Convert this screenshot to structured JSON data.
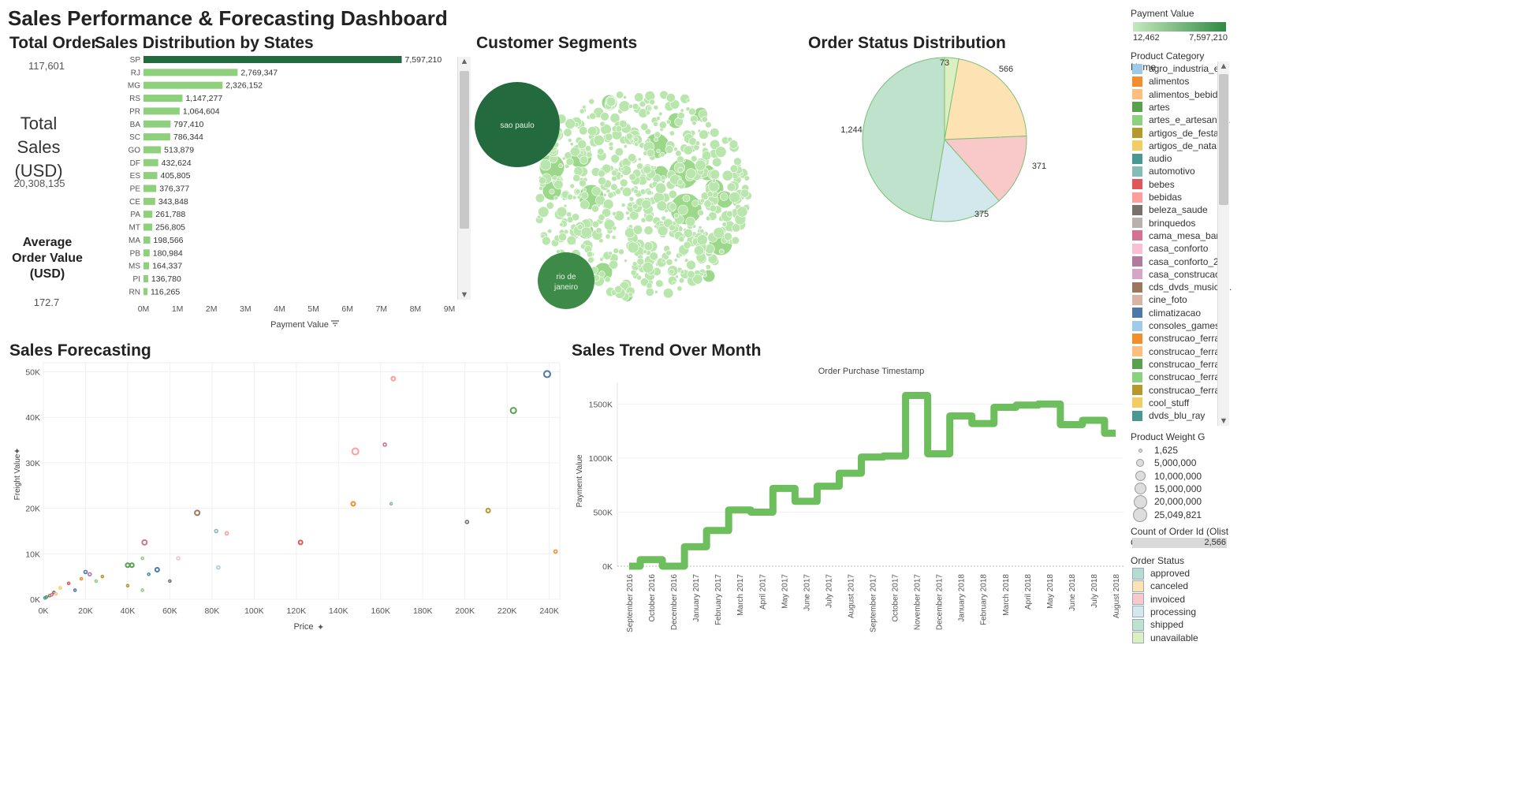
{
  "dashboard_title": "Sales Performance & Forecasting Dashboard",
  "kpis": {
    "total_order_title": "Total Order",
    "total_order_value": "117,601",
    "total_sales_title": "Total Sales (USD)",
    "total_sales_value": "20,308,135",
    "aov_title": "Average Order Value (USD)",
    "aov_value": "172.7"
  },
  "states_chart": {
    "title": "Sales Distribution by States",
    "xlabel": "Payment Value",
    "ticks": [
      "0M",
      "1M",
      "2M",
      "3M",
      "4M",
      "5M",
      "6M",
      "7M",
      "8M",
      "9M"
    ]
  },
  "segments": {
    "title": "Customer Segments",
    "big_bubbles": [
      "sao paulo",
      "rio de janeiro"
    ]
  },
  "order_status_chart": {
    "title": "Order Status Distribution"
  },
  "forecast": {
    "title": "Sales Forecasting",
    "xlabel": "Price",
    "ylabel": "Freight Value",
    "x_ticks": [
      "0K",
      "20K",
      "40K",
      "60K",
      "80K",
      "100K",
      "120K",
      "140K",
      "160K",
      "180K",
      "200K",
      "220K",
      "240K"
    ],
    "y_ticks": [
      "0K",
      "10K",
      "20K",
      "30K",
      "40K",
      "50K"
    ]
  },
  "trend": {
    "title": "Sales Trend Over Month",
    "header": "Order Purchase Timestamp",
    "ylabel": "Payment Value",
    "y_ticks": [
      "0K",
      "500K",
      "1000K",
      "1500K"
    ],
    "months": [
      "September 2016",
      "October 2016",
      "December 2016",
      "January 2017",
      "February 2017",
      "March 2017",
      "April 2017",
      "May 2017",
      "June 2017",
      "July 2017",
      "August 2017",
      "September 2017",
      "October 2017",
      "November 2017",
      "December 2017",
      "January 2018",
      "February 2018",
      "March 2018",
      "April 2018",
      "May 2018",
      "June 2018",
      "July 2018",
      "August 2018"
    ]
  },
  "legend": {
    "payment_title": "Payment Value",
    "payment_min": "12,462",
    "payment_max": "7,597,210",
    "category_title": "Product Category Name",
    "categories": [
      {
        "name": "agro_industria_e...",
        "color": "#9ecae9"
      },
      {
        "name": "alimentos",
        "color": "#f28e2b"
      },
      {
        "name": "alimentos_bebidas",
        "color": "#ffbe7d"
      },
      {
        "name": "artes",
        "color": "#59a14f"
      },
      {
        "name": "artes_e_artesana...",
        "color": "#8cd17d"
      },
      {
        "name": "artigos_de_festas",
        "color": "#b6992d"
      },
      {
        "name": "artigos_de_natal",
        "color": "#f1ce63"
      },
      {
        "name": "audio",
        "color": "#499894"
      },
      {
        "name": "automotivo",
        "color": "#86bcb6"
      },
      {
        "name": "bebes",
        "color": "#e15759"
      },
      {
        "name": "bebidas",
        "color": "#ff9d9a"
      },
      {
        "name": "beleza_saude",
        "color": "#79706e"
      },
      {
        "name": "brinquedos",
        "color": "#bab0ac"
      },
      {
        "name": "cama_mesa_ban...",
        "color": "#d37295"
      },
      {
        "name": "casa_conforto",
        "color": "#fabfd2"
      },
      {
        "name": "casa_conforto_2",
        "color": "#b07aa1"
      },
      {
        "name": "casa_construcao",
        "color": "#d4a6c8"
      },
      {
        "name": "cds_dvds_musica...",
        "color": "#9d7660"
      },
      {
        "name": "cine_foto",
        "color": "#d7b5a6"
      },
      {
        "name": "climatizacao",
        "color": "#4e79a7"
      },
      {
        "name": "consoles_games",
        "color": "#a0cbe8"
      },
      {
        "name": "construcao_ferra...",
        "color": "#f28e2b"
      },
      {
        "name": "construcao_ferra...",
        "color": "#ffbe7d"
      },
      {
        "name": "construcao_ferra...",
        "color": "#59a14f"
      },
      {
        "name": "construcao_ferra...",
        "color": "#8cd17d"
      },
      {
        "name": "construcao_ferra...",
        "color": "#b6992d"
      },
      {
        "name": "cool_stuff",
        "color": "#f1ce63"
      },
      {
        "name": "dvds_blu_ray",
        "color": "#499894"
      }
    ],
    "weight_title": "Product Weight G",
    "weights": [
      "1,625",
      "5,000,000",
      "10,000,000",
      "15,000,000",
      "20,000,000",
      "25,049,821"
    ],
    "count_title": "Count of Order Id (Olist O...",
    "count_value": "2,566",
    "status_title": "Order Status",
    "statuses": [
      {
        "name": "approved",
        "color": "#b5dcce"
      },
      {
        "name": "canceled",
        "color": "#fde3b3"
      },
      {
        "name": "invoiced",
        "color": "#f9c8c8"
      },
      {
        "name": "processing",
        "color": "#d3e8ec"
      },
      {
        "name": "shipped",
        "color": "#bfe2cc"
      },
      {
        "name": "unavailable",
        "color": "#dcefc0"
      }
    ]
  },
  "chart_data": [
    {
      "type": "bar",
      "title": "Sales Distribution by States",
      "xlabel": "Payment Value",
      "xlim": [
        0,
        9000000
      ],
      "categories": [
        "SP",
        "RJ",
        "MG",
        "RS",
        "PR",
        "BA",
        "SC",
        "GO",
        "DF",
        "ES",
        "PE",
        "CE",
        "PA",
        "MT",
        "MA",
        "PB",
        "MS",
        "PI",
        "RN"
      ],
      "values": [
        7597210,
        2769347,
        2326152,
        1147277,
        1064604,
        797410,
        786344,
        513879,
        432624,
        405805,
        376377,
        343848,
        261788,
        256805,
        198566,
        180984,
        164337,
        136780,
        116265
      ],
      "labels": [
        "7,597,210",
        "2,769,347",
        "2,326,152",
        "1,147,277",
        "1,064,604",
        "797,410",
        "786,344",
        "513,879",
        "432,624",
        "405,805",
        "376,377",
        "343,848",
        "261,788",
        "256,805",
        "198,566",
        "180,984",
        "164,337",
        "136,780",
        "116,265"
      ]
    },
    {
      "type": "pie",
      "title": "Order Status Distribution",
      "slices": [
        {
          "label": "73",
          "value": 73,
          "color": "#dcefc0"
        },
        {
          "label": "566",
          "value": 566,
          "color": "#fde3b3"
        },
        {
          "label": "371",
          "value": 371,
          "color": "#f9c8c8"
        },
        {
          "label": "375",
          "value": 375,
          "color": "#d3e8ec"
        },
        {
          "label": "1,244",
          "value": 1244,
          "color": "#bfe2cc"
        }
      ]
    },
    {
      "type": "scatter",
      "title": "Sales Forecasting",
      "xlabel": "Price",
      "ylabel": "Freight Value",
      "xlim": [
        0,
        245000
      ],
      "ylim": [
        0,
        52000
      ],
      "points": [
        {
          "x": 239000,
          "y": 49500,
          "r": 4,
          "color": "#4e79a7"
        },
        {
          "x": 223000,
          "y": 41500,
          "r": 3.5,
          "color": "#59a14f"
        },
        {
          "x": 166000,
          "y": 48500,
          "r": 2.5,
          "color": "#ff9d9a"
        },
        {
          "x": 148000,
          "y": 32500,
          "r": 4,
          "color": "#ff9d9a"
        },
        {
          "x": 162000,
          "y": 34000,
          "r": 2,
          "color": "#d37295"
        },
        {
          "x": 147000,
          "y": 21000,
          "r": 2.5,
          "color": "#f28e2b"
        },
        {
          "x": 165000,
          "y": 21000,
          "r": 1.5,
          "color": "#86bcb6"
        },
        {
          "x": 211000,
          "y": 19500,
          "r": 2.5,
          "color": "#b6992d"
        },
        {
          "x": 201000,
          "y": 17000,
          "r": 2,
          "color": "#79706e"
        },
        {
          "x": 243000,
          "y": 10500,
          "r": 2,
          "color": "#f28e2b"
        },
        {
          "x": 73000,
          "y": 19000,
          "r": 3,
          "color": "#9d7660"
        },
        {
          "x": 82000,
          "y": 15000,
          "r": 2,
          "color": "#86bcb6"
        },
        {
          "x": 87000,
          "y": 14500,
          "r": 2,
          "color": "#ff9d9a"
        },
        {
          "x": 122000,
          "y": 12500,
          "r": 2.5,
          "color": "#e15759"
        },
        {
          "x": 48000,
          "y": 12500,
          "r": 3,
          "color": "#d37295"
        },
        {
          "x": 83000,
          "y": 7000,
          "r": 2,
          "color": "#a0cbe8"
        },
        {
          "x": 64000,
          "y": 9000,
          "r": 2,
          "color": "#fabfd2"
        },
        {
          "x": 40000,
          "y": 7500,
          "r": 2.5,
          "color": "#59a14f"
        },
        {
          "x": 42000,
          "y": 7500,
          "r": 2.5,
          "color": "#59a14f"
        },
        {
          "x": 47000,
          "y": 9000,
          "r": 1.5,
          "color": "#8cd17d"
        },
        {
          "x": 54000,
          "y": 6500,
          "r": 2.5,
          "color": "#4e79a7"
        },
        {
          "x": 50000,
          "y": 5500,
          "r": 1.5,
          "color": "#499894"
        },
        {
          "x": 60000,
          "y": 4000,
          "r": 1.5,
          "color": "#79706e"
        },
        {
          "x": 40000,
          "y": 3000,
          "r": 1.5,
          "color": "#b6992d"
        },
        {
          "x": 47000,
          "y": 2000,
          "r": 1.5,
          "color": "#8cd17d"
        },
        {
          "x": 20000,
          "y": 6000,
          "r": 2,
          "color": "#4e79a7"
        },
        {
          "x": 22000,
          "y": 5500,
          "r": 2,
          "color": "#b07aa1"
        },
        {
          "x": 18000,
          "y": 4500,
          "r": 1.5,
          "color": "#f28e2b"
        },
        {
          "x": 28000,
          "y": 5000,
          "r": 1.5,
          "color": "#b6992d"
        },
        {
          "x": 25000,
          "y": 4000,
          "r": 1.5,
          "color": "#8cd17d"
        },
        {
          "x": 12000,
          "y": 3500,
          "r": 1.5,
          "color": "#e15759"
        },
        {
          "x": 8000,
          "y": 2500,
          "r": 1.5,
          "color": "#f1ce63"
        },
        {
          "x": 15000,
          "y": 2000,
          "r": 1.5,
          "color": "#4e79a7"
        },
        {
          "x": 5000,
          "y": 1500,
          "r": 1.5,
          "color": "#79706e"
        },
        {
          "x": 3000,
          "y": 800,
          "r": 1.5,
          "color": "#9d7660"
        },
        {
          "x": 1500,
          "y": 500,
          "r": 1.5,
          "color": "#59a14f"
        },
        {
          "x": 800,
          "y": 300,
          "r": 1.5,
          "color": "#499894"
        },
        {
          "x": 4000,
          "y": 1000,
          "r": 1.5,
          "color": "#d37295"
        },
        {
          "x": 6000,
          "y": 1200,
          "r": 1.5,
          "color": "#ffbe7d"
        }
      ]
    },
    {
      "type": "line",
      "title": "Sales Trend Over Month",
      "xlabel": "Order Purchase Timestamp",
      "ylabel": "Payment Value",
      "ylim": [
        0,
        1700000
      ],
      "x": [
        "September 2016",
        "October 2016",
        "December 2016",
        "January 2017",
        "February 2017",
        "March 2017",
        "April 2017",
        "May 2017",
        "June 2017",
        "July 2017",
        "August 2017",
        "September 2017",
        "October 2017",
        "November 2017",
        "December 2017",
        "January 2018",
        "February 2018",
        "March 2018",
        "April 2018",
        "May 2018",
        "June 2018",
        "July 2018",
        "August 2018"
      ],
      "values": [
        0,
        60000,
        0,
        180000,
        330000,
        520000,
        500000,
        720000,
        600000,
        740000,
        860000,
        1010000,
        1020000,
        1580000,
        1040000,
        1390000,
        1320000,
        1470000,
        1490000,
        1500000,
        1310000,
        1350000,
        1230000
      ],
      "color": "#6cbf5c",
      "style": "step"
    }
  ]
}
